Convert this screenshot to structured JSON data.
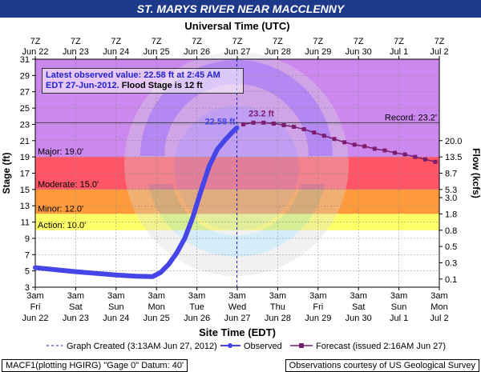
{
  "title": "ST. MARYS RIVER NEAR MACCLENNY",
  "colors": {
    "title_bg": "#1d3a8a",
    "major": "#cc88ee",
    "major_to_moderate": "#ff5566",
    "moderate": "#ff9a3c",
    "minor": "#ffff66",
    "action": "#ffffff",
    "observed": "#4545e8",
    "forecast": "#7a1d6e",
    "infobox_text": "#2222cc"
  },
  "info_box": {
    "line1": "Latest observed value: 22.58 ft at 2:45 AM",
    "line2_blue": "EDT 27-Jun-2012.",
    "line2_black": "Flood Stage is 12 ft"
  },
  "footer_left": "MACF1(plotting HGIRG) \"Gage 0\" Datum: 40'",
  "footer_right": "Observations courtesy of US Geological Survey",
  "chart_data": {
    "type": "line",
    "title": "ST. MARYS RIVER NEAR MACCLENNY",
    "top_axis_label": "Universal Time (UTC)",
    "xlabel": "Site Time (EDT)",
    "ylabel": "Stage (ft)",
    "y2label": "Flow (kcfs)",
    "ylim": [
      3,
      31
    ],
    "xlim": [
      "2012-06-22 03:00",
      "2012-07-02 03:00"
    ],
    "y_ticks": [
      3,
      5,
      7,
      9,
      11,
      13,
      15,
      17,
      19,
      21,
      23,
      25,
      27,
      29,
      31
    ],
    "y2_ticks": [
      {
        "stage": 4,
        "label": "0.1"
      },
      {
        "stage": 6,
        "label": "0.3"
      },
      {
        "stage": 8,
        "label": "0.5"
      },
      {
        "stage": 10,
        "label": "0.8"
      },
      {
        "stage": 12,
        "label": "1.8"
      },
      {
        "stage": 14,
        "label": "3.0"
      },
      {
        "stage": 15,
        "label": "5.3"
      },
      {
        "stage": 17,
        "label": "8.7"
      },
      {
        "stage": 19,
        "label": "13.5"
      },
      {
        "stage": 21,
        "label": "20.0"
      }
    ],
    "bottom_ticks": [
      {
        "t": 0,
        "l1": "3am",
        "l2": "Fri",
        "l3": "Jun 22"
      },
      {
        "t": 1,
        "l1": "3am",
        "l2": "Sat",
        "l3": "Jun 23"
      },
      {
        "t": 2,
        "l1": "3am",
        "l2": "Sun",
        "l3": "Jun 24"
      },
      {
        "t": 3,
        "l1": "3am",
        "l2": "Mon",
        "l3": "Jun 25"
      },
      {
        "t": 4,
        "l1": "3am",
        "l2": "Tue",
        "l3": "Jun 26"
      },
      {
        "t": 5,
        "l1": "3am",
        "l2": "Wed",
        "l3": "Jun 27"
      },
      {
        "t": 6,
        "l1": "3am",
        "l2": "Thu",
        "l3": "Jun 28"
      },
      {
        "t": 7,
        "l1": "3am",
        "l2": "Fri",
        "l3": "Jun 29"
      },
      {
        "t": 8,
        "l1": "3am",
        "l2": "Sat",
        "l3": "Jun 30"
      },
      {
        "t": 9,
        "l1": "3am",
        "l2": "Sun",
        "l3": "Jul 1"
      },
      {
        "t": 10,
        "l1": "3am",
        "l2": "Mon",
        "l3": "Jul 2"
      }
    ],
    "top_ticks": [
      {
        "t": 0,
        "l1": "7Z",
        "l2": "Jun 22"
      },
      {
        "t": 1,
        "l1": "7Z",
        "l2": "Jun 23"
      },
      {
        "t": 2,
        "l1": "7Z",
        "l2": "Jun 24"
      },
      {
        "t": 3,
        "l1": "7Z",
        "l2": "Jun 25"
      },
      {
        "t": 4,
        "l1": "7Z",
        "l2": "Jun 26"
      },
      {
        "t": 5,
        "l1": "7Z",
        "l2": "Jun 27"
      },
      {
        "t": 6,
        "l1": "7Z",
        "l2": "Jun 28"
      },
      {
        "t": 7,
        "l1": "7Z",
        "l2": "Jun 29"
      },
      {
        "t": 8,
        "l1": "7Z",
        "l2": "Jun 30"
      },
      {
        "t": 9,
        "l1": "7Z",
        "l2": "Jul 1"
      },
      {
        "t": 10,
        "l1": "7Z",
        "l2": "Jul 2"
      }
    ],
    "flood_categories": [
      {
        "name": "Major",
        "label": "Major: 19.0'",
        "from": 19,
        "to": 31,
        "color": "#cc88ee"
      },
      {
        "name": "Moderate",
        "label": "Moderate: 15.0'",
        "from": 15,
        "to": 19,
        "color": "#ff5566"
      },
      {
        "name": "Minor",
        "label": "Minor: 12.0'",
        "from": 12,
        "to": 15,
        "color": "#ff9a3c"
      },
      {
        "name": "Action",
        "label": "Action: 10.0'",
        "from": 10,
        "to": 12,
        "color": "#ffff66"
      }
    ],
    "record": {
      "label": "Record: 23.2'",
      "value": 23.2
    },
    "graph_created_t": 4.99,
    "series": [
      {
        "name": "Observed",
        "x_days_since_start": [
          0.0,
          0.5,
          1.0,
          1.5,
          2.0,
          2.5,
          2.9,
          3.1,
          3.3,
          3.5,
          3.7,
          3.9,
          4.1,
          4.3,
          4.5,
          4.7,
          4.85,
          4.99
        ],
        "stage_ft": [
          5.4,
          5.15,
          4.9,
          4.7,
          4.5,
          4.35,
          4.3,
          4.8,
          5.8,
          7.2,
          9.0,
          11.6,
          14.8,
          17.8,
          19.9,
          21.1,
          21.9,
          22.58
        ]
      },
      {
        "name": "Forecast",
        "x_days_since_start": [
          5.15,
          5.4,
          5.65,
          5.9,
          6.15,
          6.4,
          6.65,
          6.9,
          7.15,
          7.4,
          7.65,
          7.9,
          8.15,
          8.4,
          8.65,
          8.9,
          9.15,
          9.4,
          9.65,
          9.9
        ],
        "stage_ft": [
          23.0,
          23.2,
          23.2,
          23.1,
          22.9,
          22.7,
          22.4,
          22.0,
          21.6,
          21.2,
          20.8,
          20.5,
          20.3,
          20.0,
          19.8,
          19.5,
          19.3,
          19.0,
          18.7,
          18.4
        ]
      }
    ],
    "annotations": [
      {
        "text": "22.58 ft",
        "x": 4.99,
        "y": 22.58
      },
      {
        "text": "23.2 ft",
        "x": 5.4,
        "y": 23.2
      }
    ],
    "legend": {
      "graph_created": "Graph Created (3:13AM Jun 27, 2012)",
      "observed": "Observed",
      "forecast": "Forecast (issued 2:16AM Jun 27)"
    }
  }
}
